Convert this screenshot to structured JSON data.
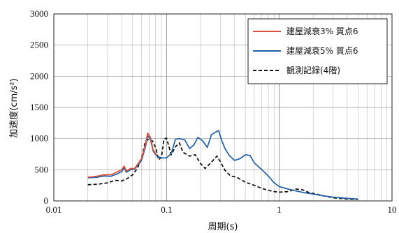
{
  "chart_data": {
    "type": "line",
    "xlabel": "周期(s)",
    "ylabel": "加速度(cm/s²)",
    "xscale": "log",
    "xlim": [
      0.01,
      10
    ],
    "ylim": [
      0,
      3000
    ],
    "x_ticks": [
      {
        "value": 0.01,
        "label": "0.01"
      },
      {
        "value": 0.1,
        "label": "0.1"
      },
      {
        "value": 1,
        "label": "1"
      },
      {
        "value": 10,
        "label": "10"
      }
    ],
    "y_ticks": [
      0,
      500,
      1000,
      1500,
      2000,
      2500,
      3000
    ],
    "grid": true,
    "legend_position": "top-right",
    "series": [
      {
        "name": "建屋減衰3% 質点6",
        "color": "#e0503a",
        "dash": "solid",
        "points": [
          [
            0.02,
            380
          ],
          [
            0.024,
            395
          ],
          [
            0.028,
            420
          ],
          [
            0.032,
            420
          ],
          [
            0.036,
            460
          ],
          [
            0.04,
            500
          ],
          [
            0.042,
            560
          ],
          [
            0.044,
            480
          ],
          [
            0.048,
            520
          ],
          [
            0.052,
            520
          ],
          [
            0.056,
            600
          ],
          [
            0.06,
            680
          ],
          [
            0.065,
            900
          ],
          [
            0.068,
            1090
          ],
          [
            0.072,
            1020
          ],
          [
            0.076,
            820
          ],
          [
            0.082,
            730
          ]
        ]
      },
      {
        "name": "建屋減衰5% 質点6",
        "color": "#1f5fa8",
        "dash": "solid",
        "points": [
          [
            0.02,
            370
          ],
          [
            0.024,
            380
          ],
          [
            0.028,
            400
          ],
          [
            0.032,
            395
          ],
          [
            0.036,
            430
          ],
          [
            0.04,
            470
          ],
          [
            0.042,
            530
          ],
          [
            0.044,
            460
          ],
          [
            0.048,
            500
          ],
          [
            0.052,
            510
          ],
          [
            0.056,
            580
          ],
          [
            0.06,
            650
          ],
          [
            0.065,
            870
          ],
          [
            0.068,
            1050
          ],
          [
            0.072,
            990
          ],
          [
            0.076,
            800
          ],
          [
            0.082,
            720
          ],
          [
            0.09,
            690
          ],
          [
            0.1,
            690
          ],
          [
            0.11,
            760
          ],
          [
            0.12,
            990
          ],
          [
            0.13,
            1000
          ],
          [
            0.145,
            980
          ],
          [
            0.16,
            840
          ],
          [
            0.175,
            900
          ],
          [
            0.19,
            1020
          ],
          [
            0.21,
            960
          ],
          [
            0.23,
            860
          ],
          [
            0.25,
            1060
          ],
          [
            0.27,
            1100
          ],
          [
            0.29,
            1130
          ],
          [
            0.31,
            960
          ],
          [
            0.33,
            840
          ],
          [
            0.36,
            730
          ],
          [
            0.4,
            650
          ],
          [
            0.45,
            680
          ],
          [
            0.5,
            740
          ],
          [
            0.55,
            730
          ],
          [
            0.6,
            610
          ],
          [
            0.7,
            500
          ],
          [
            0.8,
            400
          ],
          [
            0.9,
            290
          ],
          [
            1.0,
            230
          ],
          [
            1.2,
            190
          ],
          [
            1.4,
            160
          ],
          [
            1.7,
            130
          ],
          [
            2.0,
            110
          ],
          [
            2.5,
            80
          ],
          [
            3.0,
            60
          ],
          [
            4.0,
            40
          ],
          [
            5.0,
            30
          ]
        ]
      },
      {
        "name": "観測記録(4階)",
        "color": "#111111",
        "dash": "dashed",
        "points": [
          [
            0.02,
            260
          ],
          [
            0.025,
            270
          ],
          [
            0.03,
            290
          ],
          [
            0.035,
            330
          ],
          [
            0.04,
            320
          ],
          [
            0.045,
            360
          ],
          [
            0.05,
            420
          ],
          [
            0.055,
            520
          ],
          [
            0.06,
            680
          ],
          [
            0.065,
            960
          ],
          [
            0.07,
            990
          ],
          [
            0.075,
            960
          ],
          [
            0.08,
            860
          ],
          [
            0.085,
            660
          ],
          [
            0.09,
            700
          ],
          [
            0.095,
            990
          ],
          [
            0.1,
            1010
          ],
          [
            0.105,
            870
          ],
          [
            0.11,
            740
          ],
          [
            0.12,
            870
          ],
          [
            0.13,
            930
          ],
          [
            0.14,
            780
          ],
          [
            0.16,
            720
          ],
          [
            0.18,
            740
          ],
          [
            0.2,
            600
          ],
          [
            0.22,
            520
          ],
          [
            0.25,
            620
          ],
          [
            0.28,
            720
          ],
          [
            0.3,
            630
          ],
          [
            0.33,
            490
          ],
          [
            0.37,
            400
          ],
          [
            0.42,
            380
          ],
          [
            0.5,
            300
          ],
          [
            0.6,
            250
          ],
          [
            0.7,
            200
          ],
          [
            0.8,
            170
          ],
          [
            0.9,
            150
          ],
          [
            1.0,
            140
          ],
          [
            1.2,
            150
          ],
          [
            1.4,
            190
          ],
          [
            1.6,
            180
          ],
          [
            1.8,
            140
          ],
          [
            2.0,
            120
          ],
          [
            2.5,
            80
          ],
          [
            3.0,
            50
          ],
          [
            4.0,
            30
          ],
          [
            5.0,
            25
          ]
        ]
      }
    ]
  }
}
